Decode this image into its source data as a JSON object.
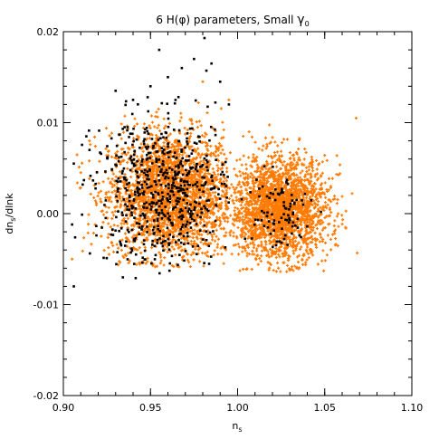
{
  "chart_data": {
    "type": "scatter",
    "title_prefix": "6 H(",
    "title_phi": "φ",
    "title_mid": ") parameters, Small ",
    "title_gamma": "γ",
    "title_gamma_sub": "0",
    "xlabel_main": "n",
    "xlabel_sub": "s",
    "ylabel_main": "dn",
    "ylabel_sub": "s",
    "ylabel_tail": "/dlnk",
    "xlim": [
      0.9,
      1.1
    ],
    "ylim": [
      -0.02,
      0.02
    ],
    "xticks": [
      0.9,
      0.95,
      1.0,
      1.05,
      1.1
    ],
    "xtick_labels": [
      "0.90",
      "0.95",
      "1.00",
      "1.05",
      "1.10"
    ],
    "yticks": [
      -0.02,
      -0.01,
      0.0,
      0.01,
      0.02
    ],
    "ytick_labels": [
      "-0.02",
      "-0.01",
      "0.00",
      "0.01",
      "0.02"
    ],
    "grid": false,
    "legend": "none",
    "series": [
      {
        "color": "#ff7a00",
        "marker": "plus",
        "clusters": [
          {
            "center": [
              0.962,
              0.002
            ],
            "spread": [
              0.018,
              0.0035
            ],
            "count": 2600,
            "range": [
              0.905,
              0.995,
              -0.006,
              0.013
            ]
          },
          {
            "center": [
              1.024,
              0.0005
            ],
            "spread": [
              0.014,
              0.0028
            ],
            "count": 2200,
            "range": [
              0.995,
              1.07,
              -0.0065,
              0.0105
            ]
          }
        ],
        "points": [
          [
            0.905,
            -0.005
          ],
          [
            0.91,
            0.0045
          ],
          [
            1.068,
            0.0105
          ],
          [
            1.062,
            -0.0015
          ],
          [
            0.98,
            0.0145
          ],
          [
            0.995,
            0.0125
          ],
          [
            0.915,
            0.008
          ]
        ]
      },
      {
        "color": "#000000",
        "marker": "square",
        "clusters": [
          {
            "center": [
              0.958,
              0.0025
            ],
            "spread": [
              0.02,
              0.004
            ],
            "count": 650,
            "range": [
              0.905,
              0.995,
              -0.008,
              0.019
            ]
          },
          {
            "center": [
              1.022,
              0.0002
            ],
            "spread": [
              0.01,
              0.0022
            ],
            "count": 90,
            "range": [
              1.0,
              1.05,
              -0.0045,
              0.006
            ]
          }
        ],
        "points": [
          [
            0.981,
            0.0193
          ],
          [
            0.955,
            0.018
          ],
          [
            0.975,
            0.017
          ],
          [
            0.968,
            0.016
          ],
          [
            0.985,
            0.0165
          ],
          [
            0.93,
            0.0135
          ],
          [
            0.94,
            0.0125
          ],
          [
            0.906,
            0.0055
          ],
          [
            0.905,
            -0.0012
          ],
          [
            0.906,
            -0.008
          ],
          [
            0.915,
            0.007
          ],
          [
            0.96,
            0.015
          ],
          [
            0.95,
            0.014
          ],
          [
            0.99,
            0.0145
          ],
          [
            0.995,
            0.012
          ]
        ]
      }
    ]
  }
}
